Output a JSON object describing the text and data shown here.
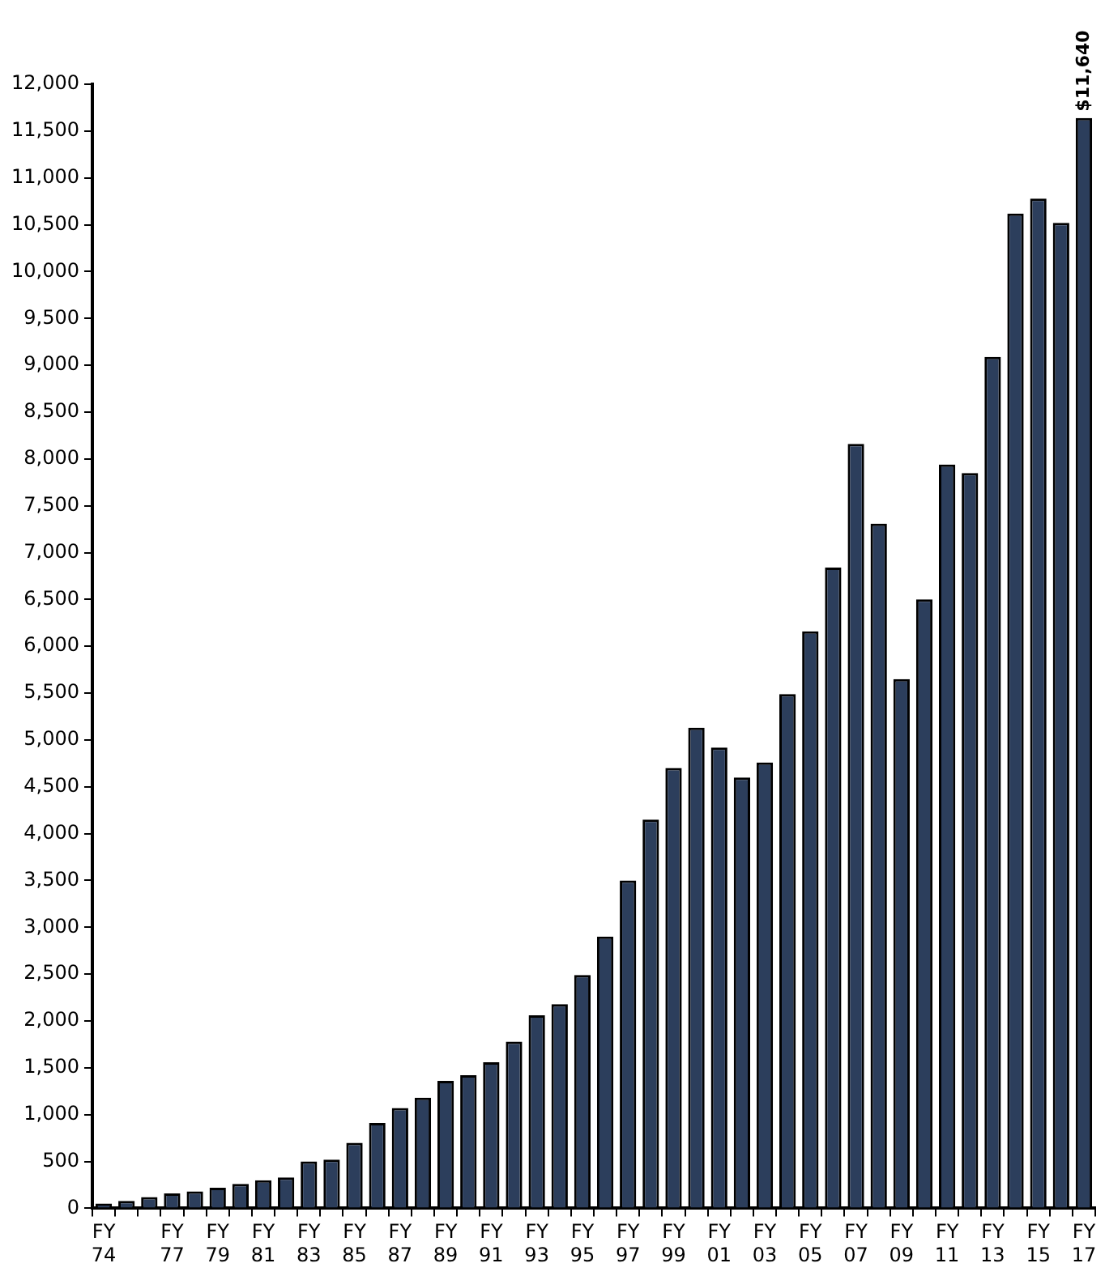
{
  "chart_data": {
    "type": "bar",
    "categories": [
      "FY 74",
      null,
      null,
      "FY 77",
      null,
      "FY 79",
      null,
      "FY 81",
      null,
      "FY 83",
      null,
      "FY 85",
      null,
      "FY 87",
      null,
      "FY 89",
      null,
      "FY 91",
      null,
      "FY 93",
      null,
      "FY 95",
      null,
      "FY 97",
      null,
      "FY 99",
      null,
      "FY 01",
      null,
      "FY 03",
      null,
      "FY 05",
      null,
      "FY 07",
      null,
      "FY 09",
      null,
      "FY 11",
      null,
      "FY 13",
      null,
      "FY 15",
      null,
      "FY 17"
    ],
    "values": [
      50,
      80,
      120,
      160,
      180,
      220,
      260,
      300,
      330,
      500,
      520,
      700,
      910,
      1070,
      1180,
      1360,
      1420,
      1560,
      1780,
      2060,
      2180,
      2490,
      2900,
      3500,
      4150,
      4700,
      5130,
      4920,
      4600,
      4760,
      5490,
      6160,
      6840,
      8160,
      7310,
      5650,
      6500,
      7940,
      7850,
      9090,
      10620,
      10780,
      10520,
      11640
    ],
    "value_labels": [
      null,
      null,
      null,
      null,
      null,
      null,
      null,
      null,
      null,
      null,
      null,
      null,
      null,
      null,
      null,
      null,
      null,
      null,
      null,
      null,
      null,
      null,
      null,
      null,
      null,
      null,
      null,
      null,
      null,
      null,
      null,
      null,
      null,
      null,
      null,
      null,
      null,
      null,
      null,
      null,
      null,
      null,
      null,
      "$11,640"
    ],
    "color": "#2c3e5c",
    "ylim": [
      0,
      12000
    ],
    "yticks": [
      0,
      500,
      {
        "value": 1000,
        "label": "1,000"
      },
      {
        "value": 1500,
        "label": "1,500"
      },
      {
        "value": 2000,
        "label": "2,000"
      },
      {
        "value": 2500,
        "label": "2,500"
      },
      {
        "value": 3000,
        "label": "3,000"
      },
      {
        "value": 3500,
        "label": "3,500"
      },
      {
        "value": 4000,
        "label": "4,000"
      },
      {
        "value": 4500,
        "label": "4,500"
      },
      {
        "value": 5000,
        "label": "5,000"
      },
      {
        "value": 5500,
        "label": "5,500"
      },
      {
        "value": 6000,
        "label": "6,000"
      },
      {
        "value": 6500,
        "label": "6,500"
      },
      {
        "value": 7000,
        "label": "7,000"
      },
      {
        "value": 7500,
        "label": "7,500"
      },
      {
        "value": 8000,
        "label": "8,000"
      },
      {
        "value": 8500,
        "label": "8,500"
      },
      {
        "value": 9000,
        "label": "9,000"
      },
      {
        "value": 9500,
        "label": "9,500"
      },
      {
        "value": 10000,
        "label": "10,000"
      },
      {
        "value": 10500,
        "label": "10,500"
      },
      {
        "value": 11000,
        "label": "11,000"
      },
      {
        "value": 11500,
        "label": "11,500"
      },
      {
        "value": 12000,
        "label": "12,000"
      }
    ],
    "grid": false,
    "legend": false
  }
}
